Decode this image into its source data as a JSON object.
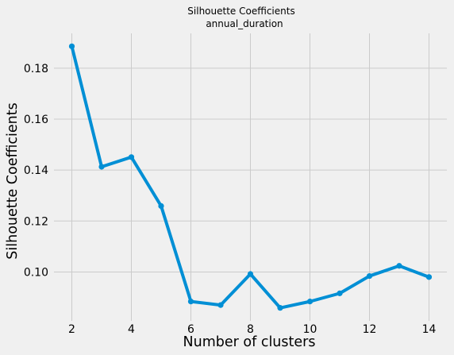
{
  "chart_data": {
    "type": "line",
    "title": "Silhouette Coefficients",
    "subtitle": "annual_duration",
    "xlabel": "Number of clusters",
    "ylabel": "Silhouette Coefficients",
    "x": [
      2,
      3,
      4,
      5,
      6,
      7,
      8,
      9,
      10,
      11,
      12,
      13,
      14
    ],
    "series": [
      {
        "values": [
          0.1886,
          0.1413,
          0.1451,
          0.1259,
          0.0884,
          0.087,
          0.0992,
          0.0859,
          0.0884,
          0.0916,
          0.0984,
          0.1024,
          0.098
        ],
        "color": "#008fd5"
      }
    ],
    "xticks": [
      2,
      4,
      6,
      8,
      10,
      12,
      14
    ],
    "xtick_labels": [
      "2",
      "4",
      "6",
      "8",
      "10",
      "12",
      "14"
    ],
    "yticks": [
      0.1,
      0.12,
      0.14,
      0.16,
      0.18
    ],
    "ytick_labels": [
      "0.10",
      "0.12",
      "0.14",
      "0.16",
      "0.18"
    ],
    "xlim": [
      1.4,
      14.6
    ],
    "ylim": [
      0.0808,
      0.1937
    ],
    "grid": true,
    "background": "#f0f0f0",
    "grid_color": "#cbcbcb"
  }
}
